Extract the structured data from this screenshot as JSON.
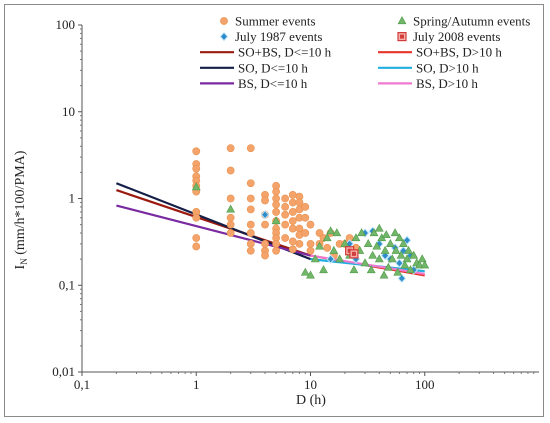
{
  "chart_data": {
    "type": "scatter",
    "xlabel": "D (h)",
    "ylabel": "I",
    "ylabel_sub": "N",
    "ylabel_rest": " (mm/h*100/PMA)",
    "x_scale": "log",
    "y_scale": "log",
    "xlim": [
      0.1,
      1000
    ],
    "ylim": [
      0.01,
      100
    ],
    "x_ticks": [
      0.1,
      1,
      10,
      100
    ],
    "x_tick_labels": [
      "0,1",
      "1",
      "10",
      "100"
    ],
    "y_ticks": [
      0.01,
      0.1,
      1,
      10,
      100
    ],
    "y_tick_labels": [
      "0,01",
      "0,1",
      "1",
      "10",
      "100"
    ],
    "grid": false,
    "legend_placement": "top-right",
    "series": [
      {
        "name": "Summer events",
        "marker": "circle",
        "color": "#f4a46a",
        "points": [
          [
            1,
            3.5
          ],
          [
            1,
            2.5
          ],
          [
            1,
            2.2
          ],
          [
            1,
            1.8
          ],
          [
            1,
            1.6
          ],
          [
            1,
            1.4
          ],
          [
            1,
            1.2
          ],
          [
            1,
            0.7
          ],
          [
            1,
            0.6
          ],
          [
            1,
            0.35
          ],
          [
            1,
            0.28
          ],
          [
            2,
            3.8
          ],
          [
            2,
            2.1
          ],
          [
            2,
            1.0
          ],
          [
            2,
            0.6
          ],
          [
            2,
            0.5
          ],
          [
            2,
            0.4
          ],
          [
            3,
            3.8
          ],
          [
            3,
            1.5
          ],
          [
            3,
            1.0
          ],
          [
            3,
            0.75
          ],
          [
            3,
            0.5
          ],
          [
            3,
            0.4
          ],
          [
            3,
            0.3
          ],
          [
            3,
            0.25
          ],
          [
            4,
            1.1
          ],
          [
            4,
            0.95
          ],
          [
            4,
            0.65
          ],
          [
            4,
            0.5
          ],
          [
            4,
            0.3
          ],
          [
            4,
            0.25
          ],
          [
            4,
            0.22
          ],
          [
            5,
            1.4
          ],
          [
            5,
            1.2
          ],
          [
            5,
            1.0
          ],
          [
            5,
            0.85
          ],
          [
            5,
            0.7
          ],
          [
            5,
            0.55
          ],
          [
            5,
            0.45
          ],
          [
            5,
            0.4
          ],
          [
            5,
            0.35
          ],
          [
            5,
            0.3
          ],
          [
            5,
            0.25
          ],
          [
            6,
            1.0
          ],
          [
            6,
            0.8
          ],
          [
            6,
            0.65
          ],
          [
            6,
            0.5
          ],
          [
            6,
            0.35
          ],
          [
            7,
            1.1
          ],
          [
            7,
            0.9
          ],
          [
            7,
            0.7
          ],
          [
            7,
            0.55
          ],
          [
            7,
            0.45
          ],
          [
            7,
            0.32
          ],
          [
            7,
            0.26
          ],
          [
            8,
            1.05
          ],
          [
            8,
            0.9
          ],
          [
            8,
            0.75
          ],
          [
            8,
            0.6
          ],
          [
            8,
            0.45
          ],
          [
            8,
            0.38
          ],
          [
            8,
            0.3
          ],
          [
            9,
            0.8
          ],
          [
            9,
            0.6
          ],
          [
            9,
            0.4
          ],
          [
            10,
            0.5
          ],
          [
            10,
            0.3
          ],
          [
            10,
            0.25
          ],
          [
            12,
            0.4
          ],
          [
            12,
            0.3
          ],
          [
            13,
            0.35
          ],
          [
            14,
            0.27
          ],
          [
            15,
            0.4
          ],
          [
            16,
            0.22
          ],
          [
            18,
            0.3
          ],
          [
            20,
            0.3
          ],
          [
            22,
            0.35
          ],
          [
            25,
            0.27
          ]
        ]
      },
      {
        "name": "July 1987 events",
        "marker": "diamond",
        "color": "#2e8cc8",
        "points": [
          [
            4,
            0.65
          ],
          [
            15,
            0.2
          ],
          [
            22,
            0.3
          ],
          [
            25,
            0.2
          ],
          [
            30,
            0.4
          ],
          [
            35,
            0.42
          ],
          [
            40,
            0.3
          ],
          [
            45,
            0.22
          ],
          [
            50,
            0.2
          ],
          [
            55,
            0.27
          ],
          [
            60,
            0.18
          ],
          [
            63,
            0.12
          ],
          [
            65,
            0.25
          ],
          [
            70,
            0.33
          ],
          [
            75,
            0.22
          ],
          [
            80,
            0.15
          ]
        ]
      },
      {
        "name": "Spring/Autumn events",
        "marker": "triangle",
        "color": "#72b66a",
        "points": [
          [
            1,
            1.35
          ],
          [
            2,
            0.75
          ],
          [
            5,
            0.55
          ],
          [
            9,
            0.14
          ],
          [
            10,
            0.13
          ],
          [
            11,
            0.2
          ],
          [
            12,
            0.28
          ],
          [
            13,
            0.15
          ],
          [
            14,
            0.35
          ],
          [
            15,
            0.42
          ],
          [
            16,
            0.25
          ],
          [
            17,
            0.4
          ],
          [
            18,
            0.2
          ],
          [
            20,
            0.3
          ],
          [
            22,
            0.22
          ],
          [
            24,
            0.15
          ],
          [
            25,
            0.35
          ],
          [
            27,
            0.25
          ],
          [
            28,
            0.4
          ],
          [
            30,
            0.18
          ],
          [
            32,
            0.3
          ],
          [
            34,
            0.15
          ],
          [
            35,
            0.22
          ],
          [
            36,
            0.4
          ],
          [
            38,
            0.28
          ],
          [
            40,
            0.45
          ],
          [
            40,
            0.2
          ],
          [
            42,
            0.35
          ],
          [
            44,
            0.13
          ],
          [
            45,
            0.25
          ],
          [
            46,
            0.38
          ],
          [
            48,
            0.16
          ],
          [
            50,
            0.3
          ],
          [
            52,
            0.2
          ],
          [
            55,
            0.4
          ],
          [
            56,
            0.25
          ],
          [
            58,
            0.14
          ],
          [
            60,
            0.35
          ],
          [
            62,
            0.22
          ],
          [
            65,
            0.3
          ],
          [
            67,
            0.17
          ],
          [
            70,
            0.2
          ],
          [
            72,
            0.25
          ],
          [
            75,
            0.15
          ],
          [
            80,
            0.22
          ],
          [
            85,
            0.18
          ],
          [
            90,
            0.17
          ],
          [
            95,
            0.2
          ],
          [
            100,
            0.17
          ]
        ]
      },
      {
        "name": "July 2008 events",
        "marker": "square",
        "color": "#d23c3c",
        "points": [
          [
            22,
            0.25
          ],
          [
            24,
            0.23
          ]
        ]
      }
    ],
    "lines": [
      {
        "name": "SO+BS, D<=10 h",
        "color": "#9a1a10",
        "x": [
          0.2,
          10
        ],
        "y": [
          1.25,
          0.22
        ]
      },
      {
        "name": "SO, D<=10 h",
        "color": "#141e46",
        "x": [
          0.2,
          10
        ],
        "y": [
          1.5,
          0.2
        ]
      },
      {
        "name": "BS, D<=10 h",
        "color": "#7a2aa0",
        "x": [
          0.2,
          10
        ],
        "y": [
          0.83,
          0.22
        ]
      },
      {
        "name": "SO+BS, D>10 h",
        "color": "#e8342a",
        "x": [
          10,
          100
        ],
        "y": [
          0.22,
          0.13
        ]
      },
      {
        "name": "SO, D>10 h",
        "color": "#22aee0",
        "x": [
          10,
          100
        ],
        "y": [
          0.2,
          0.145
        ]
      },
      {
        "name": "BS, D>10 h",
        "color": "#f07ad0",
        "x": [
          10,
          100
        ],
        "y": [
          0.22,
          0.135
        ]
      }
    ]
  }
}
